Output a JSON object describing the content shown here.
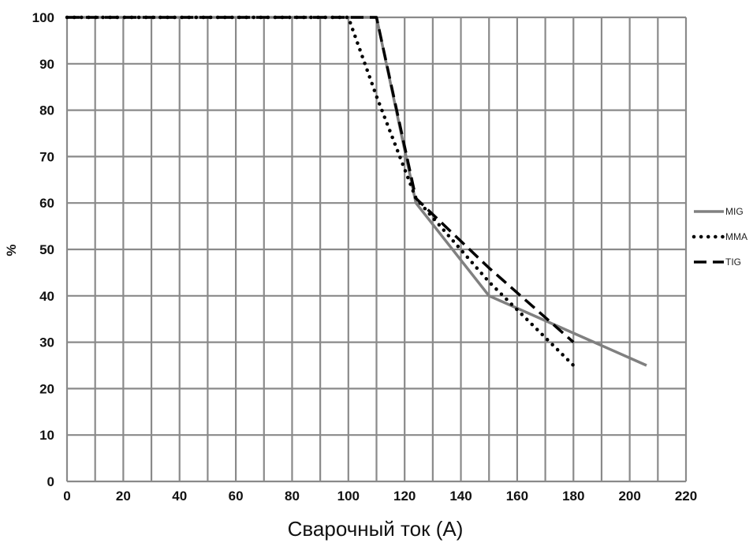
{
  "chart_data": {
    "type": "line",
    "title": "",
    "xlabel": "Сварочный ток (А)",
    "ylabel": "%",
    "xlim": [
      0,
      220
    ],
    "ylim": [
      0,
      100
    ],
    "xticks": [
      0,
      20,
      40,
      60,
      80,
      100,
      120,
      140,
      160,
      180,
      200,
      220
    ],
    "yticks": [
      0,
      10,
      20,
      30,
      40,
      50,
      60,
      70,
      80,
      90,
      100
    ],
    "x_grid_step": 10,
    "grid": true,
    "legend_position": "right",
    "series": [
      {
        "name": "MIG",
        "color": "#808080",
        "style": "solid",
        "points": [
          [
            0,
            100
          ],
          [
            110,
            100
          ],
          [
            124,
            60
          ],
          [
            150,
            40
          ],
          [
            206,
            25
          ]
        ]
      },
      {
        "name": "MMA",
        "color": "#000000",
        "style": "dotted",
        "points": [
          [
            0,
            100
          ],
          [
            100,
            100
          ],
          [
            110,
            83
          ],
          [
            124,
            61
          ],
          [
            150,
            43
          ],
          [
            180,
            25
          ]
        ]
      },
      {
        "name": "TIG",
        "color": "#000000",
        "style": "dashed",
        "points": [
          [
            0,
            100
          ],
          [
            110,
            100
          ],
          [
            124,
            61
          ],
          [
            150,
            46
          ],
          [
            180,
            30
          ]
        ]
      }
    ]
  }
}
